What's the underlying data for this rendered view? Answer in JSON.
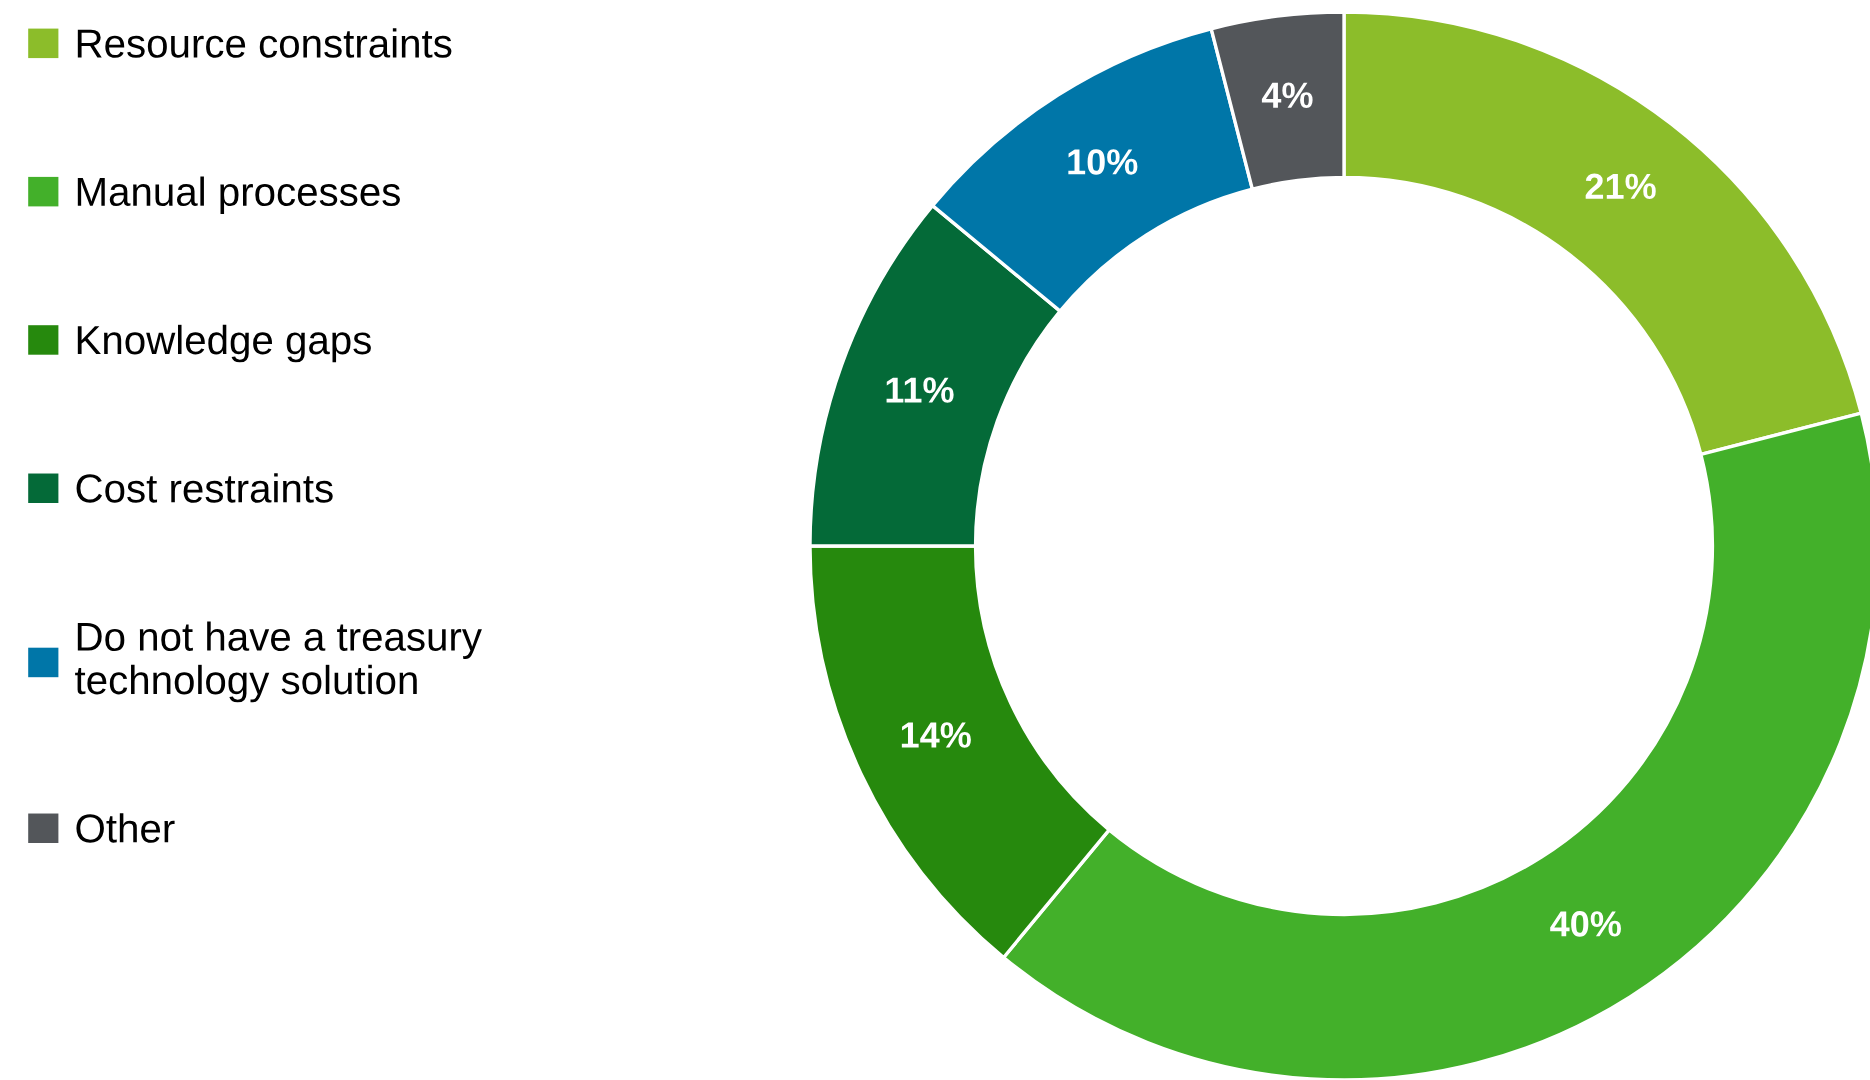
{
  "chart_data": {
    "type": "donut",
    "categories": [
      "Resource constraints",
      "Manual processes",
      "Knowledge gaps",
      "Cost restraints",
      "Do not have a treasury technology solution",
      "Other"
    ],
    "values": [
      21,
      40,
      14,
      11,
      10,
      4
    ],
    "colors": [
      "#8cbd2a",
      "#43b02a",
      "#26890d",
      "#046a38",
      "#0076a8",
      "#53565a"
    ],
    "value_labels": [
      "21%",
      "40%",
      "14%",
      "11%",
      "10%",
      "4%"
    ],
    "legend": "left"
  }
}
